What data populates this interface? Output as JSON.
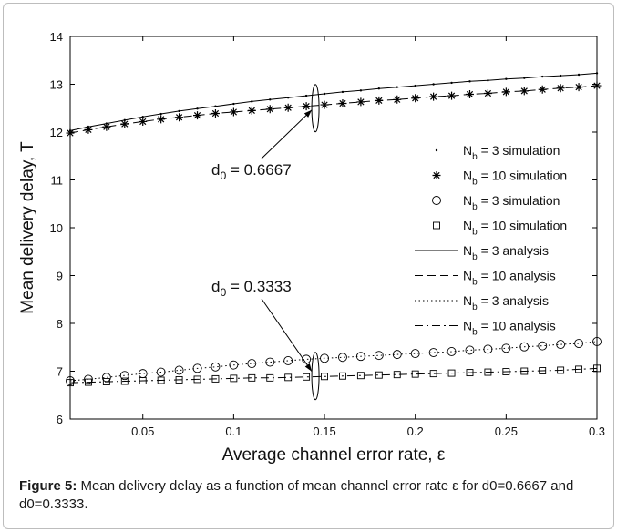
{
  "chart_data": {
    "type": "line",
    "xlabel": "Average channel error rate, ε",
    "ylabel": "Mean delivery delay, T",
    "xlim": [
      0.01,
      0.3
    ],
    "ylim": [
      6,
      14
    ],
    "xticks": [
      0.05,
      0.1,
      0.15,
      0.2,
      0.25,
      0.3
    ],
    "yticks": [
      6,
      7,
      8,
      9,
      10,
      11,
      12,
      13,
      14
    ],
    "grid": false,
    "legend_position": "right",
    "series": [
      {
        "name": "N_b = 3 simulation",
        "style": "dot",
        "x": [
          0.01,
          0.02,
          0.03,
          0.04,
          0.05,
          0.06,
          0.07,
          0.08,
          0.09,
          0.1,
          0.11,
          0.12,
          0.13,
          0.14,
          0.15,
          0.16,
          0.17,
          0.18,
          0.19,
          0.2,
          0.21,
          0.22,
          0.23,
          0.24,
          0.25,
          0.26,
          0.27,
          0.28,
          0.29,
          0.3
        ],
        "y": [
          12.03,
          12.11,
          12.18,
          12.25,
          12.32,
          12.38,
          12.44,
          12.49,
          12.54,
          12.59,
          12.64,
          12.68,
          12.72,
          12.76,
          12.8,
          12.84,
          12.87,
          12.91,
          12.94,
          12.97,
          13.0,
          13.03,
          13.06,
          13.08,
          13.11,
          13.13,
          13.16,
          13.18,
          13.2,
          13.23
        ]
      },
      {
        "name": "N_b = 10 simulation",
        "style": "star",
        "x": [
          0.01,
          0.02,
          0.03,
          0.04,
          0.05,
          0.06,
          0.07,
          0.08,
          0.09,
          0.1,
          0.11,
          0.12,
          0.13,
          0.14,
          0.15,
          0.16,
          0.17,
          0.18,
          0.19,
          0.2,
          0.21,
          0.22,
          0.23,
          0.24,
          0.25,
          0.26,
          0.27,
          0.28,
          0.29,
          0.3
        ],
        "y": [
          11.98,
          12.05,
          12.11,
          12.17,
          12.22,
          12.27,
          12.31,
          12.35,
          12.39,
          12.42,
          12.45,
          12.48,
          12.51,
          12.54,
          12.57,
          12.6,
          12.63,
          12.66,
          12.68,
          12.71,
          12.74,
          12.76,
          12.79,
          12.81,
          12.84,
          12.86,
          12.89,
          12.92,
          12.94,
          12.97
        ]
      },
      {
        "name": "N_b = 3 simulation",
        "style": "circle",
        "x": [
          0.01,
          0.02,
          0.03,
          0.04,
          0.05,
          0.06,
          0.07,
          0.08,
          0.09,
          0.1,
          0.11,
          0.12,
          0.13,
          0.14,
          0.15,
          0.16,
          0.17,
          0.18,
          0.19,
          0.2,
          0.21,
          0.22,
          0.23,
          0.24,
          0.25,
          0.26,
          0.27,
          0.28,
          0.29,
          0.3
        ],
        "y": [
          6.8,
          6.83,
          6.87,
          6.91,
          6.95,
          6.98,
          7.02,
          7.06,
          7.09,
          7.13,
          7.16,
          7.19,
          7.22,
          7.25,
          7.27,
          7.29,
          7.31,
          7.33,
          7.35,
          7.37,
          7.39,
          7.41,
          7.44,
          7.46,
          7.48,
          7.51,
          7.53,
          7.56,
          7.58,
          7.62
        ]
      },
      {
        "name": "N_b = 10 simulation",
        "style": "square",
        "x": [
          0.01,
          0.02,
          0.03,
          0.04,
          0.05,
          0.06,
          0.07,
          0.08,
          0.09,
          0.1,
          0.11,
          0.12,
          0.13,
          0.14,
          0.15,
          0.16,
          0.17,
          0.18,
          0.19,
          0.2,
          0.21,
          0.22,
          0.23,
          0.24,
          0.25,
          0.26,
          0.27,
          0.28,
          0.29,
          0.3
        ],
        "y": [
          6.76,
          6.77,
          6.78,
          6.79,
          6.8,
          6.81,
          6.82,
          6.83,
          6.84,
          6.85,
          6.86,
          6.86,
          6.87,
          6.88,
          6.89,
          6.9,
          6.91,
          6.92,
          6.93,
          6.94,
          6.95,
          6.96,
          6.97,
          6.98,
          6.99,
          7.0,
          7.01,
          7.02,
          7.04,
          7.06
        ]
      },
      {
        "name": "N_b = 3 analysis",
        "style": "solid",
        "x": [
          0.01,
          0.02,
          0.03,
          0.04,
          0.05,
          0.06,
          0.07,
          0.08,
          0.09,
          0.1,
          0.11,
          0.12,
          0.13,
          0.14,
          0.15,
          0.16,
          0.17,
          0.18,
          0.19,
          0.2,
          0.21,
          0.22,
          0.23,
          0.24,
          0.25,
          0.26,
          0.27,
          0.28,
          0.29,
          0.3
        ],
        "y": [
          12.03,
          12.11,
          12.18,
          12.25,
          12.32,
          12.38,
          12.44,
          12.49,
          12.54,
          12.59,
          12.64,
          12.68,
          12.72,
          12.76,
          12.8,
          12.84,
          12.87,
          12.91,
          12.94,
          12.97,
          13.0,
          13.03,
          13.06,
          13.08,
          13.11,
          13.13,
          13.16,
          13.18,
          13.2,
          13.23
        ]
      },
      {
        "name": "N_b = 10 analysis",
        "style": "dashed",
        "x": [
          0.01,
          0.02,
          0.03,
          0.04,
          0.05,
          0.06,
          0.07,
          0.08,
          0.09,
          0.1,
          0.11,
          0.12,
          0.13,
          0.14,
          0.15,
          0.16,
          0.17,
          0.18,
          0.19,
          0.2,
          0.21,
          0.22,
          0.23,
          0.24,
          0.25,
          0.26,
          0.27,
          0.28,
          0.29,
          0.3
        ],
        "y": [
          11.98,
          12.05,
          12.11,
          12.17,
          12.22,
          12.27,
          12.31,
          12.35,
          12.39,
          12.42,
          12.45,
          12.48,
          12.51,
          12.54,
          12.57,
          12.6,
          12.63,
          12.66,
          12.68,
          12.71,
          12.74,
          12.76,
          12.79,
          12.81,
          12.84,
          12.86,
          12.89,
          12.92,
          12.94,
          12.97
        ]
      },
      {
        "name": "N_b = 3 analysis",
        "style": "dotted",
        "x": [
          0.01,
          0.02,
          0.03,
          0.04,
          0.05,
          0.06,
          0.07,
          0.08,
          0.09,
          0.1,
          0.11,
          0.12,
          0.13,
          0.14,
          0.15,
          0.16,
          0.17,
          0.18,
          0.19,
          0.2,
          0.21,
          0.22,
          0.23,
          0.24,
          0.25,
          0.26,
          0.27,
          0.28,
          0.29,
          0.3
        ],
        "y": [
          6.8,
          6.83,
          6.87,
          6.91,
          6.95,
          6.98,
          7.02,
          7.06,
          7.09,
          7.13,
          7.16,
          7.19,
          7.22,
          7.25,
          7.27,
          7.29,
          7.31,
          7.33,
          7.35,
          7.37,
          7.39,
          7.41,
          7.44,
          7.46,
          7.48,
          7.51,
          7.53,
          7.56,
          7.58,
          7.62
        ]
      },
      {
        "name": "N_b = 10 analysis",
        "style": "dashdot",
        "x": [
          0.01,
          0.02,
          0.03,
          0.04,
          0.05,
          0.06,
          0.07,
          0.08,
          0.09,
          0.1,
          0.11,
          0.12,
          0.13,
          0.14,
          0.15,
          0.16,
          0.17,
          0.18,
          0.19,
          0.2,
          0.21,
          0.22,
          0.23,
          0.24,
          0.25,
          0.26,
          0.27,
          0.28,
          0.29,
          0.3
        ],
        "y": [
          6.76,
          6.77,
          6.78,
          6.79,
          6.8,
          6.81,
          6.82,
          6.83,
          6.84,
          6.85,
          6.86,
          6.86,
          6.87,
          6.88,
          6.89,
          6.9,
          6.91,
          6.92,
          6.93,
          6.94,
          6.95,
          6.96,
          6.97,
          6.98,
          6.99,
          7.0,
          7.01,
          7.02,
          7.04,
          7.06
        ]
      }
    ],
    "legend": [
      {
        "prefix": "N",
        "sub": "b",
        "text": " = 3  simulation",
        "style": "dot"
      },
      {
        "prefix": "N",
        "sub": "b",
        "text": " = 10 simulation",
        "style": "star"
      },
      {
        "prefix": "N",
        "sub": "b",
        "text": " = 3  simulation",
        "style": "circle"
      },
      {
        "prefix": "N",
        "sub": "b",
        "text": " = 10 simulation",
        "style": "square"
      },
      {
        "prefix": "N",
        "sub": "b",
        "text": " = 3  analysis",
        "style": "solid"
      },
      {
        "prefix": "N",
        "sub": "b",
        "text": " = 10 analysis",
        "style": "dashed"
      },
      {
        "prefix": "N",
        "sub": "b",
        "text": " = 3  analysis",
        "style": "dotted"
      },
      {
        "prefix": "N",
        "sub": "b",
        "text": " = 10 analysis",
        "style": "dashdot"
      }
    ],
    "annotations": [
      {
        "prefix": "d",
        "sub": "0",
        "text": " = 0.6667",
        "anchor_x": 0.145,
        "anchor_y": 12.5
      },
      {
        "prefix": "d",
        "sub": "0",
        "text": " = 0.3333",
        "anchor_x": 0.145,
        "anchor_y": 6.9
      }
    ]
  },
  "caption": {
    "label": "Figure 5:",
    "text": " Mean delivery delay as a function of mean channel error rate ε for d0=0.6667 and d0=0.3333."
  }
}
